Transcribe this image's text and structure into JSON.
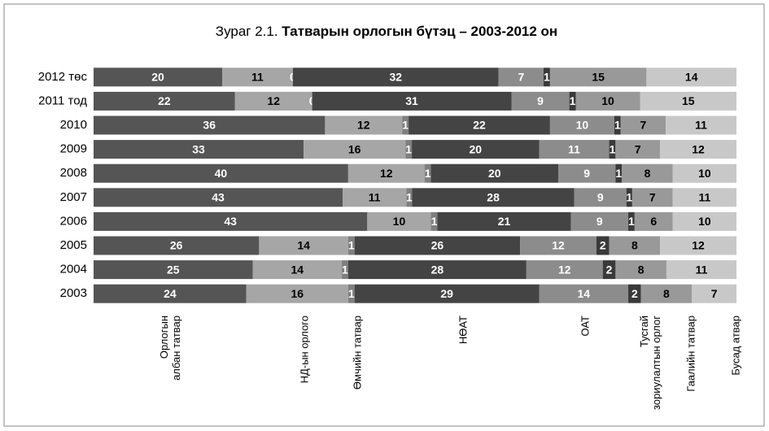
{
  "chart_data": {
    "type": "stacked_bar_100",
    "title_prefix": "Зураг 2.1.",
    "title": "Татварын орлогын бүтэц – 2003-2012 он",
    "categories": [
      "2012 төс",
      "2011 тод",
      "2010",
      "2009",
      "2008",
      "2007",
      "2006",
      "2005",
      "2004",
      "2003"
    ],
    "series": [
      {
        "name": "Орлогын албан татвар",
        "color": "#555555",
        "values": [
          20,
          22,
          36,
          33,
          40,
          43,
          43,
          26,
          25,
          24
        ]
      },
      {
        "name": "НД-ын орлого",
        "color": "#a6a6a6",
        "values": [
          11,
          12,
          12,
          16,
          12,
          11,
          10,
          14,
          14,
          16
        ]
      },
      {
        "name": "Өмчийн татвар",
        "color": "#7f7f7f",
        "values": [
          0,
          0,
          1,
          1,
          1,
          1,
          1,
          1,
          1,
          1
        ]
      },
      {
        "name": "НӨАТ",
        "color": "#444444",
        "values": [
          32,
          31,
          22,
          20,
          20,
          28,
          21,
          26,
          28,
          29
        ]
      },
      {
        "name": "ОАТ",
        "color": "#8c8c8c",
        "values": [
          7,
          9,
          10,
          11,
          9,
          9,
          9,
          12,
          12,
          14
        ]
      },
      {
        "name": "Тусгай зориулалтын орлог",
        "color": "#3a3a3a",
        "values": [
          1,
          1,
          1,
          1,
          1,
          1,
          1,
          2,
          2,
          2
        ]
      },
      {
        "name": "Гаалийн татвар",
        "color": "#999999",
        "values": [
          15,
          10,
          7,
          7,
          8,
          7,
          6,
          8,
          8,
          8
        ]
      },
      {
        "name": "Бусад атвар",
        "color": "#c8c8c8",
        "values": [
          14,
          15,
          11,
          12,
          10,
          11,
          10,
          12,
          11,
          7
        ]
      }
    ]
  }
}
